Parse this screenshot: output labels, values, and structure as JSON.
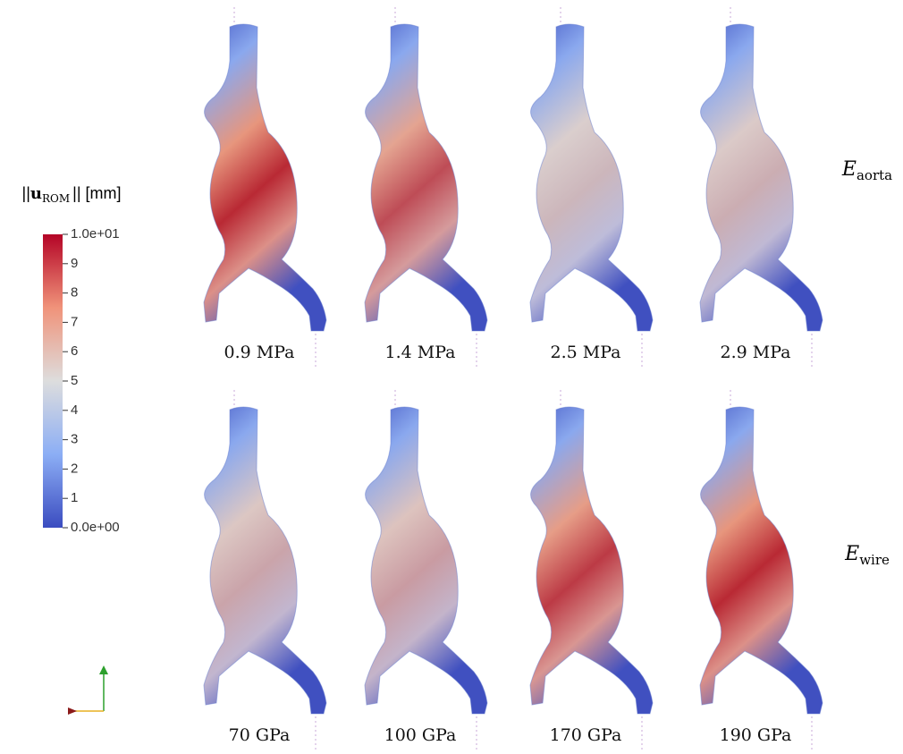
{
  "colorbar": {
    "title": {
      "open": "||",
      "symbol": "u",
      "subscript": "ROM",
      "close": "|| [mm]"
    },
    "range": [
      0,
      10
    ],
    "ticks": [
      {
        "value": 10,
        "label": "1.0e+01"
      },
      9,
      8,
      7,
      6,
      5,
      4,
      3,
      2,
      1,
      {
        "value": 0,
        "label": "0.0e+00"
      }
    ]
  },
  "rows": [
    {
      "label": {
        "symbol": "E",
        "subscript": "aorta"
      },
      "panels": [
        "0.9 MPa",
        "1.4 MPa",
        "2.5 MPa",
        "2.9 MPa"
      ]
    },
    {
      "label": {
        "symbol": "E",
        "subscript": "wire"
      },
      "panels": [
        "70 GPa",
        "100 GPa",
        "170 GPa",
        "190 GPa"
      ]
    }
  ]
}
